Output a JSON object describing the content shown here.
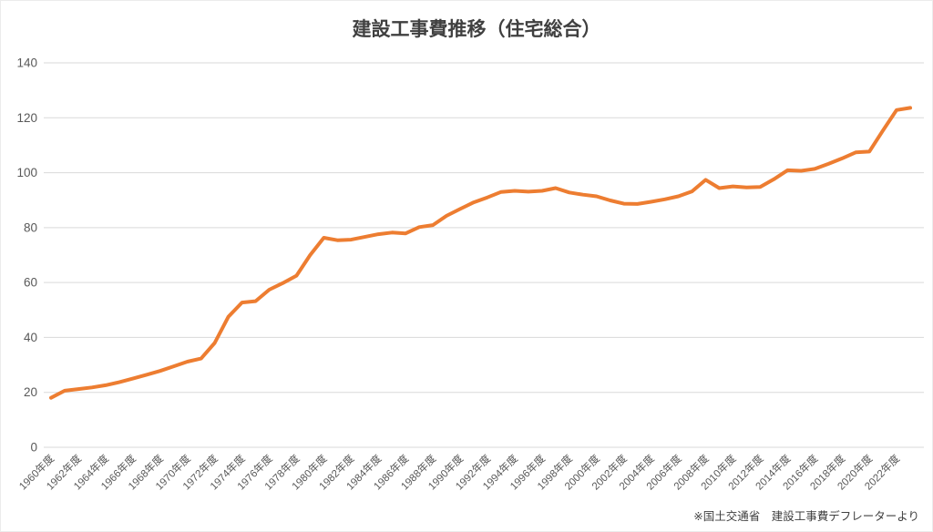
{
  "chart": {
    "title": "建設工事費推移（住宅総合）",
    "source_note": "※国土交通省　建設工事費デフレーターより"
  },
  "colors": {
    "line": "#ED7D31",
    "gridline": "#D9D9D9",
    "title_text": "#404040",
    "axis_text": "#595959",
    "background": "#FFFFFF"
  },
  "chart_data": {
    "type": "line",
    "title": "建設工事費推移（住宅総合）",
    "xlabel": "",
    "ylabel": "",
    "ylim": [
      0,
      140
    ],
    "yticks": [
      0,
      20,
      40,
      60,
      80,
      100,
      120,
      140
    ],
    "grid": "horizontal-only",
    "legend_position": "none",
    "x_tick_labels": [
      "1960年度",
      "1962年度",
      "1964年度",
      "1966年度",
      "1968年度",
      "1970年度",
      "1972年度",
      "1974年度",
      "1976年度",
      "1978年度",
      "1980年度",
      "1982年度",
      "1984年度",
      "1986年度",
      "1988年度",
      "1990年度",
      "1992年度",
      "1994年度",
      "1996年度",
      "1998年度",
      "2000年度",
      "2002年度",
      "2004年度",
      "2006年度",
      "2008年度",
      "2010年度",
      "2012年度",
      "2014年度",
      "2016年度",
      "2018年度",
      "2020年度",
      "2022年度"
    ],
    "x_tick_years": [
      1960,
      1962,
      1964,
      1966,
      1968,
      1970,
      1972,
      1974,
      1976,
      1978,
      1980,
      1982,
      1984,
      1986,
      1988,
      1990,
      1992,
      1994,
      1996,
      1998,
      2000,
      2002,
      2004,
      2006,
      2008,
      2010,
      2012,
      2014,
      2016,
      2018,
      2020,
      2022
    ],
    "series": [
      {
        "x": [
          1960,
          1961,
          1962,
          1963,
          1964,
          1965,
          1966,
          1967,
          1968,
          1969,
          1970,
          1971,
          1972,
          1973,
          1974,
          1975,
          1976,
          1977,
          1978,
          1979,
          1980,
          1981,
          1982,
          1983,
          1984,
          1985,
          1986,
          1987,
          1988,
          1989,
          1990,
          1991,
          1992,
          1993,
          1994,
          1995,
          1996,
          1997,
          1998,
          1999,
          2000,
          2001,
          2002,
          2003,
          2004,
          2005,
          2006,
          2007,
          2008,
          2009,
          2010,
          2011,
          2012,
          2013,
          2014,
          2015,
          2016,
          2017,
          2018,
          2019,
          2020,
          2021,
          2022,
          2023
        ],
        "values": [
          18.0,
          20.6,
          21.2,
          21.8,
          22.6,
          23.7,
          25.0,
          26.4,
          27.8,
          29.5,
          31.2,
          32.3,
          38.0,
          47.5,
          52.7,
          53.2,
          57.4,
          59.8,
          62.5,
          70.0,
          76.3,
          75.4,
          75.6,
          76.6,
          77.6,
          78.2,
          77.9,
          80.2,
          80.9,
          84.3,
          86.8,
          89.2,
          91.0,
          93.0,
          93.4,
          93.1,
          93.4,
          94.4,
          92.8,
          92.0,
          91.4,
          89.9,
          88.7,
          88.6,
          89.4,
          90.3,
          91.4,
          93.2,
          97.4,
          94.4,
          95.0,
          94.6,
          94.8,
          97.6,
          100.9,
          100.7,
          101.4,
          103.2,
          105.2,
          107.4,
          107.7,
          115.4,
          122.8,
          123.6
        ]
      }
    ],
    "source_note": "※国土交通省　建設工事費デフレーターより"
  }
}
